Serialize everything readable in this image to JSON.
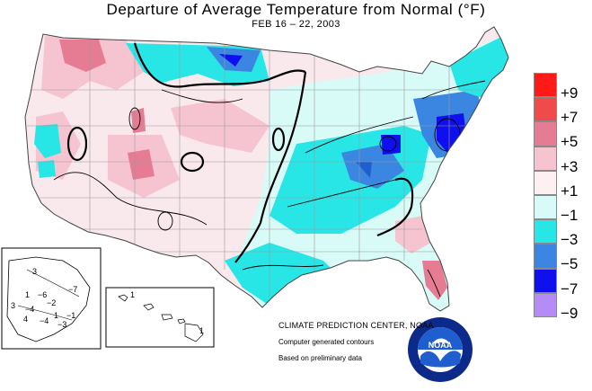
{
  "title": "Departure of Average Temperature from Normal (°F)",
  "subtitle": "FEB 16 – 22, 2003",
  "legend": [
    {
      "label": "+9",
      "color": "#ff1a1a"
    },
    {
      "label": "+7",
      "color": "#f04a4a"
    },
    {
      "label": "+5",
      "color": "#e57c93"
    },
    {
      "label": "+3",
      "color": "#f6c4d1"
    },
    {
      "label": "+1",
      "color": "#fdf0f2"
    },
    {
      "label": "−1",
      "color": "#d8fbf8"
    },
    {
      "label": "−3",
      "color": "#28e6e6"
    },
    {
      "label": "−5",
      "color": "#3a86e0"
    },
    {
      "label": "−7",
      "color": "#1010ee"
    },
    {
      "label": "−9",
      "color": "#b58cf5"
    }
  ],
  "credits": {
    "center": "CLIMATE PREDICTION CENTER, NOAA",
    "line2": "Computer generated contours",
    "line3": "Based on preliminary data"
  },
  "alaska_labels": [
    "3",
    "−7",
    "1",
    "−6",
    "−2",
    "3",
    "−4",
    "1",
    "4",
    "−4",
    "−3",
    "−1"
  ],
  "hawaii_labels": [
    "1",
    "1"
  ],
  "logo": {
    "text": "NOAA",
    "colors": {
      "ring": "#0d2a8a",
      "sky": "#1f5ecf"
    }
  }
}
